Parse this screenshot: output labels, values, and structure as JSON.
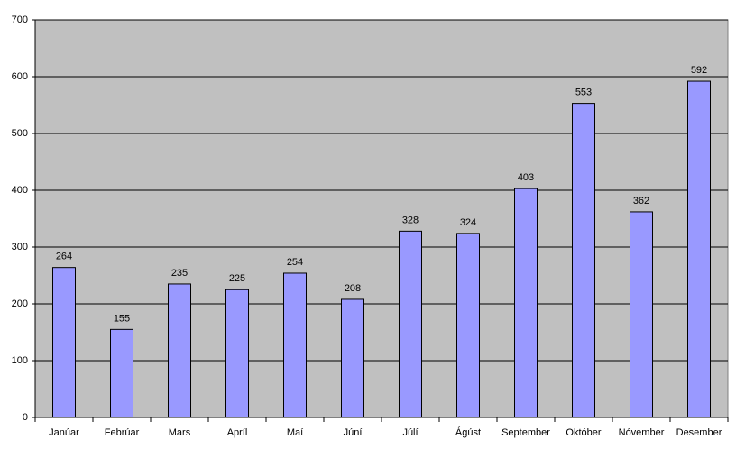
{
  "chart_data": {
    "type": "bar",
    "categories": [
      "Janúar",
      "Febrúar",
      "Mars",
      "Apríl",
      "Maí",
      "Júní",
      "Júlí",
      "Ágúst",
      "September",
      "Október",
      "Nóvember",
      "Desember"
    ],
    "values": [
      264,
      155,
      235,
      225,
      254,
      208,
      328,
      324,
      403,
      553,
      362,
      592
    ],
    "color": "#9999ff",
    "ylim": [
      0,
      700
    ],
    "yticks": [
      0,
      100,
      200,
      300,
      400,
      500,
      600,
      700
    ],
    "grid": true
  }
}
